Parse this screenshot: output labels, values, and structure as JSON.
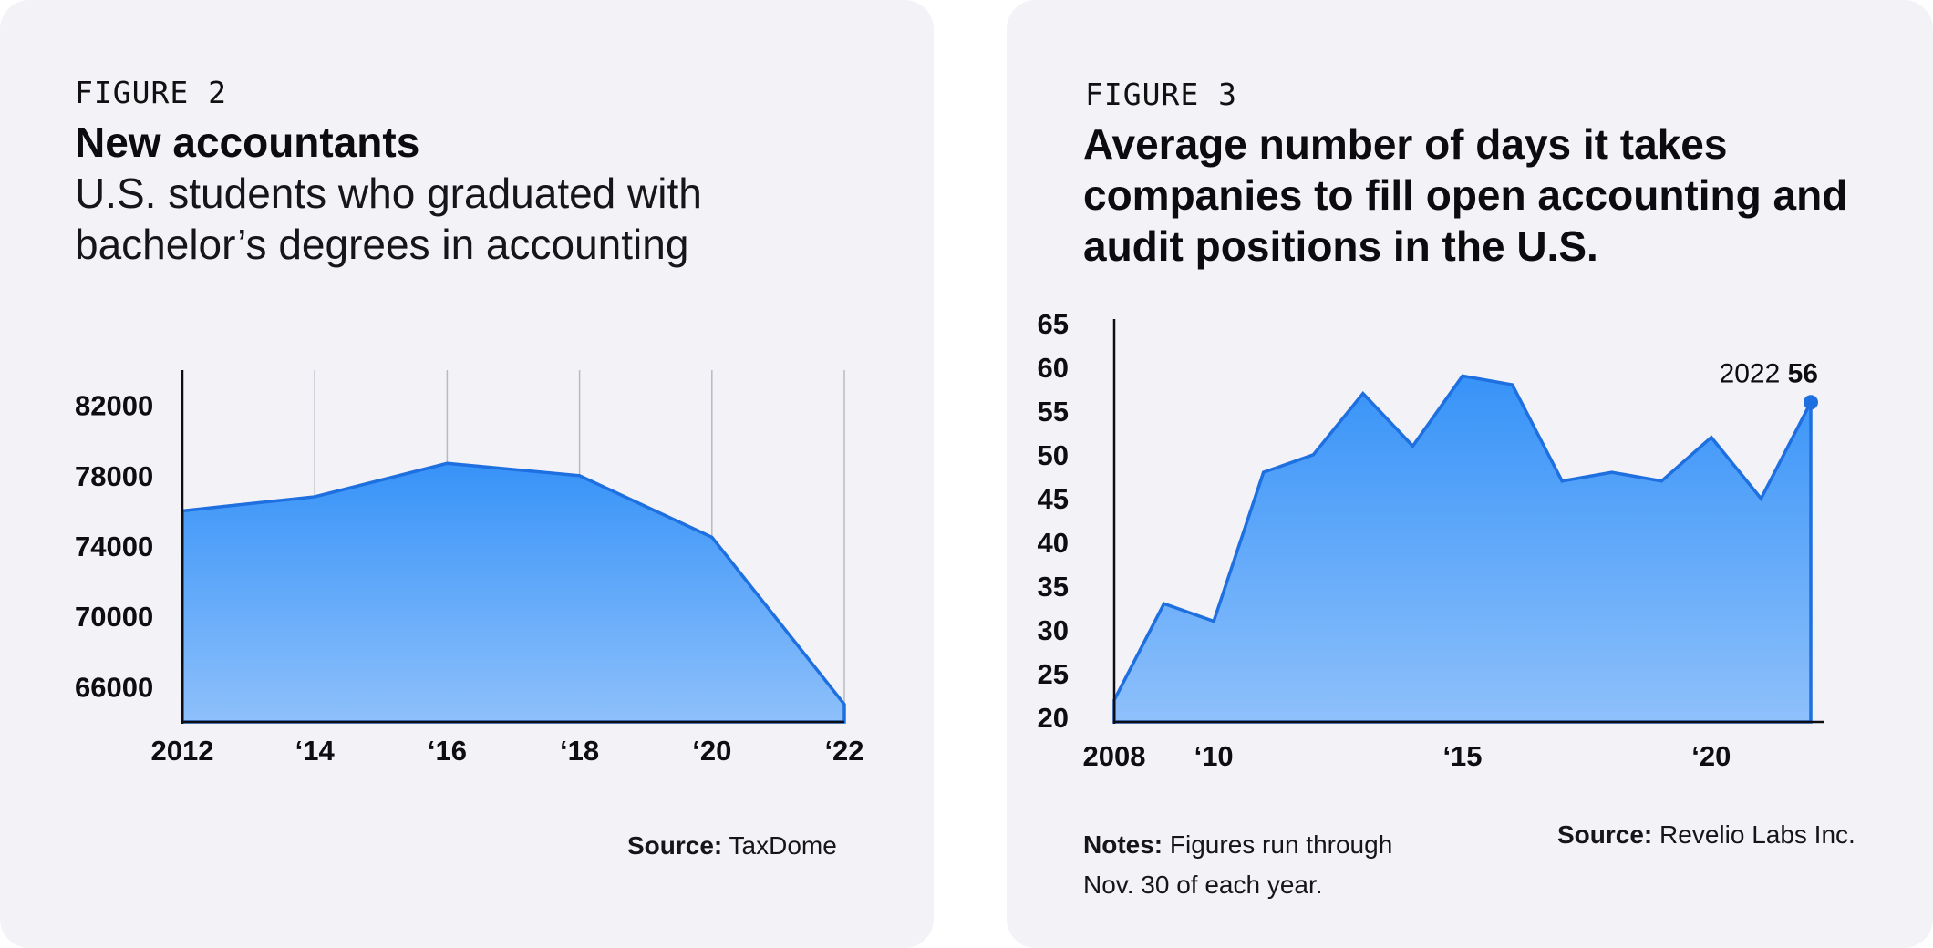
{
  "chart_data": [
    {
      "type": "area",
      "figure_label": "FIGURE 2",
      "title": "New accountants",
      "subtitle": "U.S. students who graduated with bachelor’s degrees in accounting",
      "x": [
        2012,
        2014,
        2016,
        2018,
        2020,
        2022
      ],
      "x_tick_labels": [
        "2012",
        "‘14",
        "‘16",
        "‘18",
        "‘20",
        "‘22"
      ],
      "values": [
        76000,
        76800,
        78700,
        78000,
        74500,
        65000
      ],
      "y_ticks": [
        66000,
        70000,
        74000,
        78000,
        82000
      ],
      "y_tick_labels": [
        "66000",
        "70000",
        "74000",
        "78000",
        "82000"
      ],
      "ylim": [
        64000,
        84000
      ],
      "grid": "vertical",
      "source_label": "Source:",
      "source": "TaxDome"
    },
    {
      "type": "area",
      "figure_label": "FIGURE 3",
      "title": "Average number of days it takes companies to fill open accounting and audit positions in the U.S.",
      "x": [
        2008,
        2009,
        2010,
        2011,
        2012,
        2013,
        2014,
        2015,
        2016,
        2017,
        2018,
        2019,
        2020,
        2021,
        2022
      ],
      "x_tick_values": [
        2008,
        2010,
        2015,
        2020
      ],
      "x_tick_labels": [
        "2008",
        "‘10",
        "‘15",
        "‘20"
      ],
      "values": [
        22,
        33,
        31,
        48,
        50,
        57,
        51,
        59,
        58,
        47,
        48,
        47,
        52,
        45,
        56
      ],
      "y_ticks": [
        20,
        25,
        30,
        35,
        40,
        45,
        50,
        55,
        60,
        65
      ],
      "y_tick_labels": [
        "20",
        "25",
        "30",
        "35",
        "40",
        "45",
        "50",
        "55",
        "60",
        "65"
      ],
      "ylim": [
        19.5,
        65.5
      ],
      "grid": "none",
      "annotation": {
        "year": "2022",
        "value": "56"
      },
      "notes_label": "Notes:",
      "notes": "Figures run through Nov. 30 of each year.",
      "source_label": "Source:",
      "source": "Revelio Labs Inc."
    }
  ],
  "colors": {
    "area_top": "#3793f8",
    "area_bottom": "#8ec0fb",
    "line": "#1e6fe0",
    "axis": "#0d0d12",
    "grid": "#b9b9c2"
  }
}
